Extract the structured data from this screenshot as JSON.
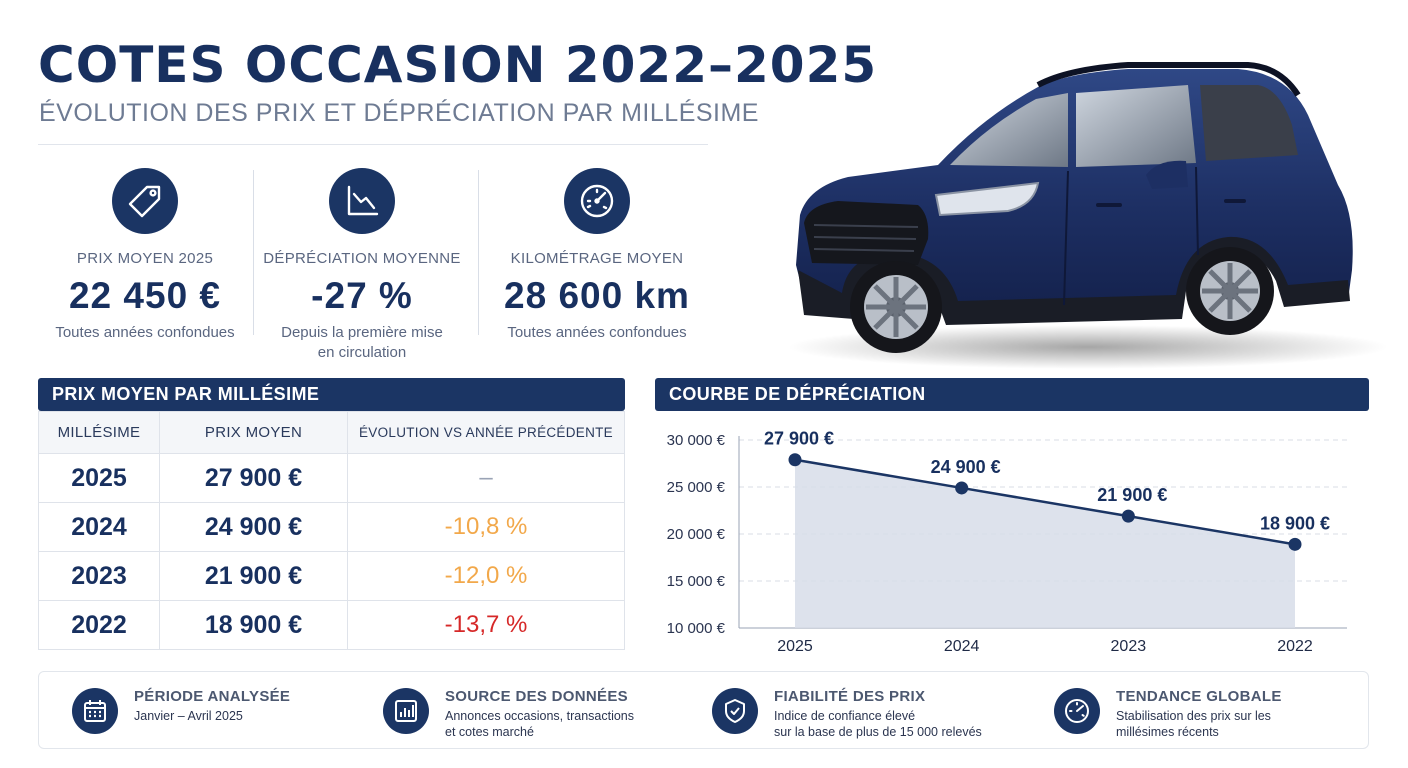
{
  "header": {
    "title": "COTES OCCASION 2022–2025",
    "subtitle": "ÉVOLUTION DES PRIX ET DÉPRÉCIATION PAR MILLÉSIME"
  },
  "kpis": [
    {
      "label": "PRIX MOYEN 2025",
      "value": "22 450 €",
      "note_1": "Toutes années confondues",
      "note_2": "",
      "icon": "price-tag-icon"
    },
    {
      "label": "DÉPRÉCIATION MOYENNE",
      "value": "-27 %",
      "note_1": "Depuis la première mise",
      "note_2": "en circulation",
      "icon": "trend-down-chart-icon"
    },
    {
      "label": "KILOMÉTRAGE MOYEN",
      "value": "28 600 km",
      "note_1": "Toutes années confondues",
      "note_2": "",
      "icon": "speedometer-icon"
    }
  ],
  "table": {
    "title": "PRIX MOYEN PAR MILLÉSIME",
    "headers": [
      "MILLÉSIME",
      "PRIX MOYEN",
      "ÉVOLUTION VS ANNÉE PRÉCÉDENTE"
    ],
    "rows": [
      {
        "year": "2025",
        "price": "27 900 €",
        "evolution": "–",
        "color": "#9aa3b5"
      },
      {
        "year": "2024",
        "price": "24 900 €",
        "evolution": "-10,8 %",
        "color": "#f2a84a"
      },
      {
        "year": "2023",
        "price": "21 900 €",
        "evolution": "-12,0 %",
        "color": "#f2a84a"
      },
      {
        "year": "2022",
        "price": "18 900 €",
        "evolution": "-13,7 %",
        "color": "#d62828"
      }
    ]
  },
  "chart": {
    "title": "COURBE DE DÉPRÉCIATION"
  },
  "chart_data": {
    "type": "area",
    "categories": [
      "2025",
      "2024",
      "2023",
      "2022"
    ],
    "series": [
      {
        "values": [
          27900,
          24900,
          21900,
          18900
        ]
      }
    ],
    "data_labels": [
      "27 900 €",
      "24 900 €",
      "21 900 €",
      "18 900 €"
    ],
    "y_ticks": [
      30000,
      25000,
      20000,
      15000,
      10000
    ],
    "y_tick_labels": [
      "30 000 €",
      "25 000 €",
      "20 000 €",
      "15 000 €",
      "10 000 €"
    ],
    "ylim": [
      10000,
      30000
    ],
    "grid": true,
    "line_color": "#1b3564",
    "fill_color": "#d7dde9"
  },
  "footer": [
    {
      "title": "PÉRIODE ANALYSÉE",
      "line_1": "Janvier – Avril 2025",
      "line_2": "",
      "icon": "calendar-icon"
    },
    {
      "title": "SOURCE DES DONNÉES",
      "line_1": "Annonces occasions, transactions",
      "line_2": "et cotes marché",
      "icon": "bar-chart-icon"
    },
    {
      "title": "FIABILITÉ DES PRIX",
      "line_1": "Indice de confiance élevé",
      "line_2": "sur la base de plus de 15 000 relevés",
      "icon": "shield-check-icon"
    },
    {
      "title": "TENDANCE GLOBALE",
      "line_1": "Stabilisation des prix sur les",
      "line_2": "millésimes récents",
      "icon": "gauge-icon"
    }
  ],
  "colors": {
    "navy": "#1b3564",
    "orange": "#f2a84a",
    "red": "#d62828"
  }
}
